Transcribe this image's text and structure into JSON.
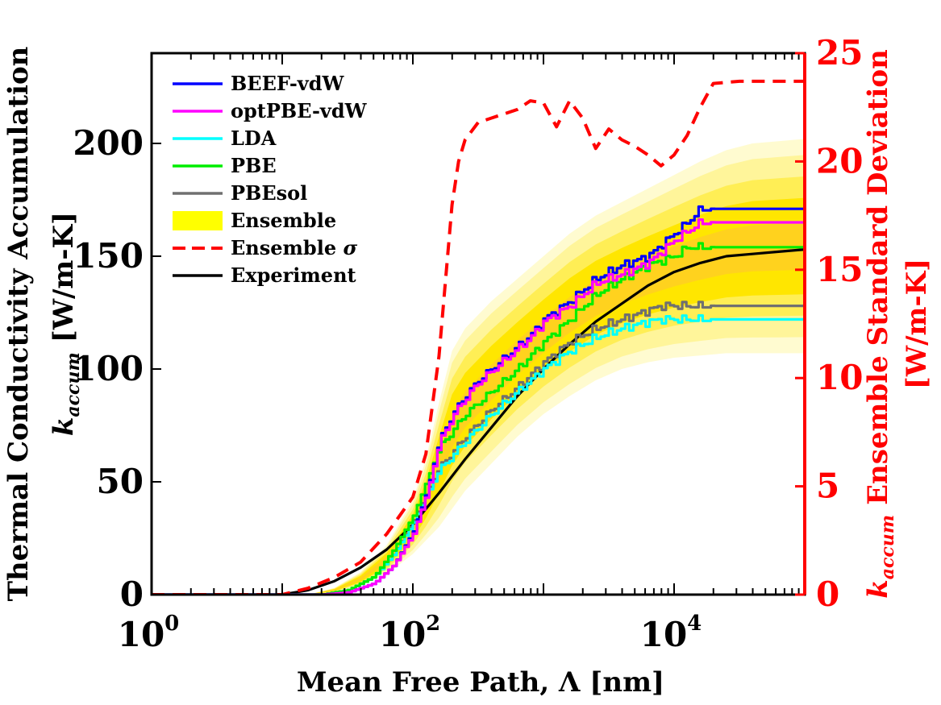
{
  "chart_data": {
    "type": "line",
    "xlabel": "Mean Free Path, Λ [nm]",
    "ylabel_left_line1": "Thermal Conductivity Accumulation",
    "ylabel_left_k": "k",
    "ylabel_left_sub": "accum",
    "ylabel_left_units": "[W/m-K]",
    "ylabel_right_k": "k",
    "ylabel_right_sub": "accum",
    "ylabel_right_rest": "Ensemble Standard Deviation",
    "ylabel_right_units": "[W/m-K]",
    "x_scale": "log10",
    "xlim_log10": [
      0,
      5
    ],
    "ylim_left": [
      0,
      240
    ],
    "ylim_right": [
      0,
      25
    ],
    "x_ticks": [
      {
        "base": "10",
        "exp": "0",
        "log10": 0
      },
      {
        "base": "10",
        "exp": "2",
        "log10": 2
      },
      {
        "base": "10",
        "exp": "4",
        "log10": 4
      }
    ],
    "y_ticks_left": [
      "0",
      "50",
      "100",
      "150",
      "200"
    ],
    "y_ticks_right": [
      "0",
      "5",
      "10",
      "15",
      "20",
      "25"
    ],
    "colors": {
      "BEEF-vdW": "#0000ff",
      "optPBE-vdW": "#ff00ff",
      "LDA": "#00ffff",
      "PBE": "#00ee00",
      "PBEsol": "#707070",
      "Ensemble": "#ffff00",
      "Ensemble σ": "#ff0000",
      "Experiment": "#000000"
    },
    "legend": [
      {
        "label": "BEEF-vdW",
        "style": "line"
      },
      {
        "label": "optPBE-vdW",
        "style": "line"
      },
      {
        "label": "LDA",
        "style": "line"
      },
      {
        "label": "PBE",
        "style": "line"
      },
      {
        "label": "PBEsol",
        "style": "line"
      },
      {
        "label": "Ensemble",
        "style": "patch"
      },
      {
        "label": "Ensemble ",
        "sigma": "σ",
        "style": "dashed"
      },
      {
        "label": "Experiment",
        "style": "line"
      }
    ],
    "legend_location": "top-left",
    "series": [
      {
        "name": "BEEF-vdW",
        "axis": "left",
        "x_log10": [
          0,
          1.3,
          1.5,
          1.7,
          1.85,
          2.0,
          2.1,
          2.2,
          2.3,
          2.4,
          2.5,
          2.6,
          2.7,
          2.8,
          2.9,
          3.0,
          3.2,
          3.4,
          3.6,
          3.8,
          3.9,
          4.0,
          4.1,
          4.2,
          4.5,
          5.0
        ],
        "y": [
          0,
          0,
          1,
          5,
          13,
          28,
          45,
          68,
          80,
          88,
          95,
          100,
          105,
          110,
          115,
          122,
          130,
          140,
          146,
          150,
          155,
          160,
          165,
          171,
          171,
          171
        ]
      },
      {
        "name": "optPBE-vdW",
        "axis": "left",
        "x_log10": [
          0,
          1.3,
          1.5,
          1.7,
          1.85,
          2.0,
          2.1,
          2.2,
          2.3,
          2.4,
          2.5,
          2.6,
          2.7,
          2.8,
          2.9,
          3.0,
          3.2,
          3.4,
          3.6,
          3.8,
          3.9,
          4.0,
          4.1,
          4.2,
          4.5,
          5.0
        ],
        "y": [
          0,
          0,
          1,
          5,
          13,
          27,
          44,
          67,
          79,
          87,
          94,
          99,
          104,
          109,
          114,
          121,
          128,
          138,
          142,
          147,
          152,
          157,
          161,
          165,
          165,
          165
        ]
      },
      {
        "name": "LDA",
        "axis": "left",
        "x_log10": [
          0,
          1.3,
          1.5,
          1.7,
          1.85,
          2.0,
          2.1,
          2.2,
          2.4,
          2.6,
          2.8,
          3.0,
          3.2,
          3.4,
          3.6,
          3.8,
          3.9,
          4.0,
          4.2,
          5.0
        ],
        "y": [
          0,
          0,
          2,
          8,
          18,
          32,
          44,
          55,
          68,
          80,
          90,
          100,
          108,
          114,
          118,
          121,
          122,
          122,
          122,
          122
        ]
      },
      {
        "name": "PBE",
        "axis": "left",
        "x_log10": [
          0,
          1.3,
          1.5,
          1.7,
          1.85,
          2.0,
          2.1,
          2.2,
          2.4,
          2.6,
          2.8,
          3.0,
          3.2,
          3.4,
          3.6,
          3.8,
          4.0,
          4.1,
          4.2,
          5.0
        ],
        "y": [
          0,
          0,
          2,
          8,
          20,
          35,
          50,
          65,
          80,
          90,
          100,
          112,
          122,
          133,
          140,
          146,
          150,
          154,
          154,
          154
        ]
      },
      {
        "name": "PBEsol",
        "axis": "left",
        "x_log10": [
          0,
          1.3,
          1.5,
          1.7,
          1.85,
          2.0,
          2.1,
          2.2,
          2.4,
          2.6,
          2.8,
          3.0,
          3.2,
          3.4,
          3.6,
          3.8,
          3.9,
          4.0,
          4.2,
          5.0
        ],
        "y": [
          0,
          0,
          2,
          8,
          18,
          33,
          45,
          56,
          70,
          82,
          92,
          103,
          112,
          118,
          122,
          126,
          128,
          128,
          128,
          128
        ]
      },
      {
        "name": "Experiment",
        "axis": "left",
        "x_log10": [
          0,
          1.0,
          1.2,
          1.4,
          1.6,
          1.8,
          2.0,
          2.2,
          2.4,
          2.6,
          2.8,
          3.0,
          3.2,
          3.4,
          3.6,
          3.8,
          4.0,
          4.2,
          4.4,
          4.6,
          4.8,
          5.0
        ],
        "y": [
          0,
          0,
          2,
          6,
          12,
          20,
          31,
          45,
          60,
          74,
          88,
          100,
          111,
          121,
          129,
          137,
          143,
          147,
          150,
          151,
          152,
          153
        ]
      },
      {
        "name": "Ensemble σ",
        "axis": "right",
        "x_log10": [
          0,
          1.0,
          1.2,
          1.4,
          1.6,
          1.8,
          2.0,
          2.1,
          2.2,
          2.3,
          2.35,
          2.4,
          2.5,
          2.6,
          2.7,
          2.8,
          2.9,
          3.0,
          3.1,
          3.2,
          3.3,
          3.4,
          3.5,
          3.6,
          3.7,
          3.8,
          3.9,
          4.0,
          4.1,
          4.2,
          4.3,
          4.5,
          5.0
        ],
        "y": [
          0,
          0,
          0.3,
          0.8,
          1.5,
          2.8,
          4.5,
          6.5,
          11,
          18,
          20,
          21,
          21.8,
          22,
          22.2,
          22.4,
          22.8,
          22.7,
          21.6,
          22.8,
          22,
          20.6,
          21.5,
          21,
          20.7,
          20.3,
          19.8,
          20.3,
          21.2,
          22.5,
          23.6,
          23.7,
          23.7
        ]
      }
    ],
    "ensemble_band": {
      "name": "Ensemble",
      "axis": "left",
      "x_log10": [
        1.0,
        1.2,
        1.4,
        1.6,
        1.8,
        2.0,
        2.1,
        2.2,
        2.3,
        2.4,
        2.6,
        2.8,
        3.0,
        3.2,
        3.4,
        3.6,
        3.8,
        4.0,
        4.2,
        4.4,
        4.6,
        4.8,
        5.0
      ],
      "low": [
        0,
        0,
        1,
        4,
        9,
        18,
        24,
        30,
        38,
        46,
        58,
        70,
        80,
        88,
        95,
        100,
        103,
        105,
        106,
        107,
        107,
        107,
        107
      ],
      "high": [
        0,
        0,
        3,
        10,
        22,
        42,
        60,
        85,
        108,
        118,
        130,
        140,
        150,
        160,
        168,
        174,
        180,
        186,
        192,
        197,
        200,
        201,
        202
      ]
    }
  }
}
